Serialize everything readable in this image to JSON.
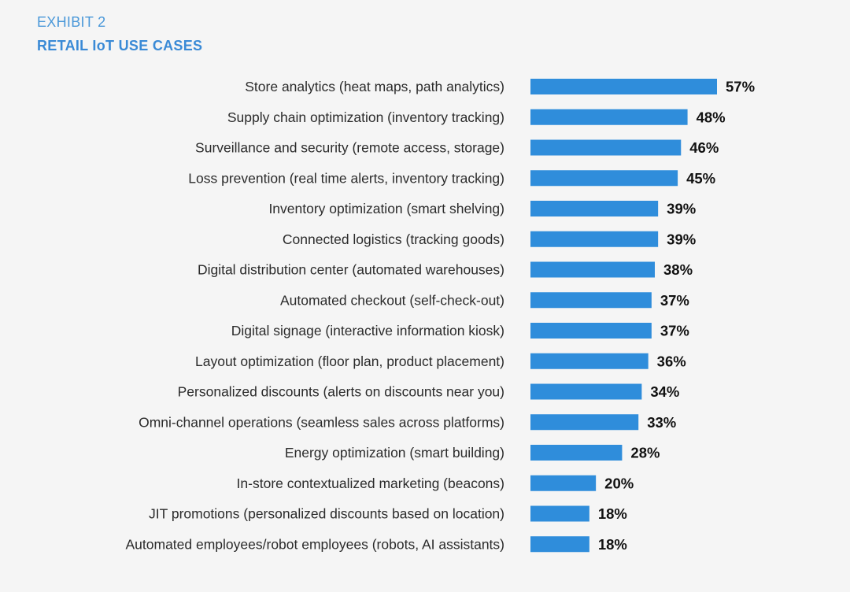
{
  "header": {
    "exhibit": "EXHIBIT 2",
    "title": "RETAIL IoT USE CASES"
  },
  "colors": {
    "bar": "#2f8ddb",
    "header": "#3a8ad6",
    "background": "#f5f5f5"
  },
  "chart_data": {
    "type": "bar",
    "orientation": "horizontal",
    "title": "RETAIL IoT USE CASES",
    "xlabel": "",
    "ylabel": "",
    "unit": "%",
    "grid": false,
    "xlim": [
      0,
      57
    ],
    "categories": [
      "Store analytics (heat maps, path analytics)",
      "Supply chain optimization (inventory tracking)",
      "Surveillance and security (remote access, storage)",
      "Loss prevention (real time alerts, inventory tracking)",
      "Inventory optimization (smart shelving)",
      "Connected logistics (tracking goods)",
      "Digital distribution center (automated warehouses)",
      "Automated checkout (self-check-out)",
      "Digital signage (interactive information kiosk)",
      "Layout optimization (floor plan, product placement)",
      "Personalized discounts (alerts on discounts near you)",
      "Omni-channel operations (seamless sales across platforms)",
      "Energy optimization (smart building)",
      "In-store contextualized marketing (beacons)",
      "JIT promotions (personalized discounts based on location)",
      "Automated employees/robot employees (robots, AI assistants)"
    ],
    "values": [
      57,
      48,
      46,
      45,
      39,
      39,
      38,
      37,
      37,
      36,
      34,
      33,
      28,
      20,
      18,
      18
    ],
    "value_labels": [
      "57%",
      "48%",
      "46%",
      "45%",
      "39%",
      "39%",
      "38%",
      "37%",
      "37%",
      "36%",
      "34%",
      "33%",
      "28%",
      "20%",
      "18%",
      "18%"
    ]
  }
}
